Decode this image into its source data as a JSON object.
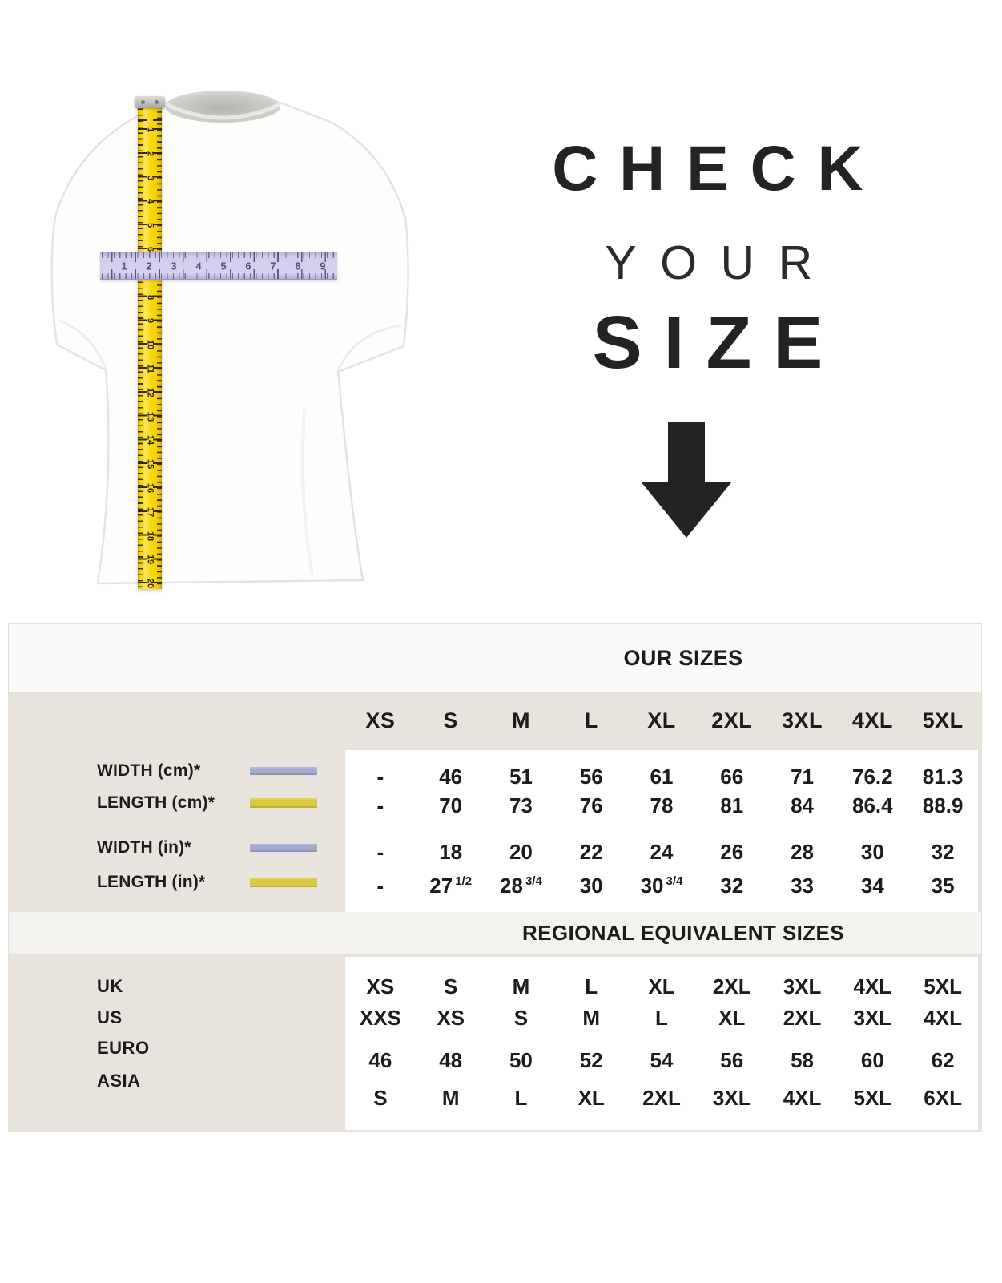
{
  "headline": {
    "line1": "CHECK",
    "line2": "YOUR",
    "line3": "SIZE"
  },
  "tshirt_diagram": {
    "vertical_tape_numbers": [
      "1",
      "2",
      "3",
      "4",
      "5",
      "6",
      "7",
      "8",
      "9",
      "10",
      "11",
      "12",
      "13",
      "14",
      "15",
      "16",
      "17",
      "18",
      "19",
      "20"
    ],
    "horizontal_ruler_numbers": [
      "1",
      "2",
      "3",
      "4",
      "5",
      "6",
      "7",
      "8",
      "9"
    ],
    "colors": {
      "tape_yellow": "#f9da0b",
      "ruler_lavender": "#d0cdea"
    }
  },
  "swatch_colors": {
    "lavender": "#a5aacf",
    "yellow": "#d9c93e"
  },
  "chart_data": [
    {
      "type": "table",
      "title": "OUR SIZES",
      "columns": [
        "XS",
        "S",
        "M",
        "L",
        "XL",
        "2XL",
        "3XL",
        "4XL",
        "5XL"
      ],
      "bold_columns": [
        6,
        7,
        8
      ],
      "rows": [
        {
          "label": "WIDTH (cm)*",
          "swatch": "lavender",
          "values": [
            "-",
            "46",
            "51",
            "56",
            "61",
            "66",
            "71",
            "76.2",
            "81.3"
          ]
        },
        {
          "label": "LENGTH (cm)*",
          "swatch": "yellow",
          "values": [
            "-",
            "70",
            "73",
            "76",
            "78",
            "81",
            "84",
            "86.4",
            "88.9"
          ]
        },
        {
          "label": "WIDTH (in)*",
          "swatch": "lavender",
          "values": [
            "-",
            "18",
            "20",
            "22",
            "24",
            "26",
            "28",
            "30",
            "32"
          ]
        },
        {
          "label": "LENGTH (in)*",
          "swatch": "yellow",
          "values": [
            "-",
            "27 1/2",
            "28 3/4",
            "30",
            "30 3/4",
            "32",
            "33",
            "34",
            "35"
          ]
        }
      ]
    },
    {
      "type": "table",
      "title": "REGIONAL EQUIVALENT SIZES",
      "columns": [
        "XS",
        "S",
        "M",
        "L",
        "XL",
        "2XL",
        "3XL",
        "4XL",
        "5XL"
      ],
      "bold_columns": [
        0,
        6,
        7,
        8
      ],
      "rows": [
        {
          "label": "UK",
          "values": [
            "XS",
            "S",
            "M",
            "L",
            "XL",
            "2XL",
            "3XL",
            "4XL",
            "5XL"
          ]
        },
        {
          "label": "US",
          "values": [
            "XXS",
            "XS",
            "S",
            "M",
            "L",
            "XL",
            "2XL",
            "3XL",
            "4XL"
          ]
        },
        {
          "label": "EURO",
          "values": [
            "46",
            "48",
            "50",
            "52",
            "54",
            "56",
            "58",
            "60",
            "62"
          ]
        },
        {
          "label": "ASIA",
          "values": [
            "S",
            "M",
            "L",
            "XL",
            "2XL",
            "3XL",
            "4XL",
            "5XL",
            "6XL"
          ]
        }
      ]
    }
  ],
  "colors": {
    "beige": "#e8e3dc",
    "card_band": "#fbfaf8",
    "regional_band": "#f3f2ef",
    "panel": "#ffffff",
    "ink": "#1d1c1a"
  }
}
